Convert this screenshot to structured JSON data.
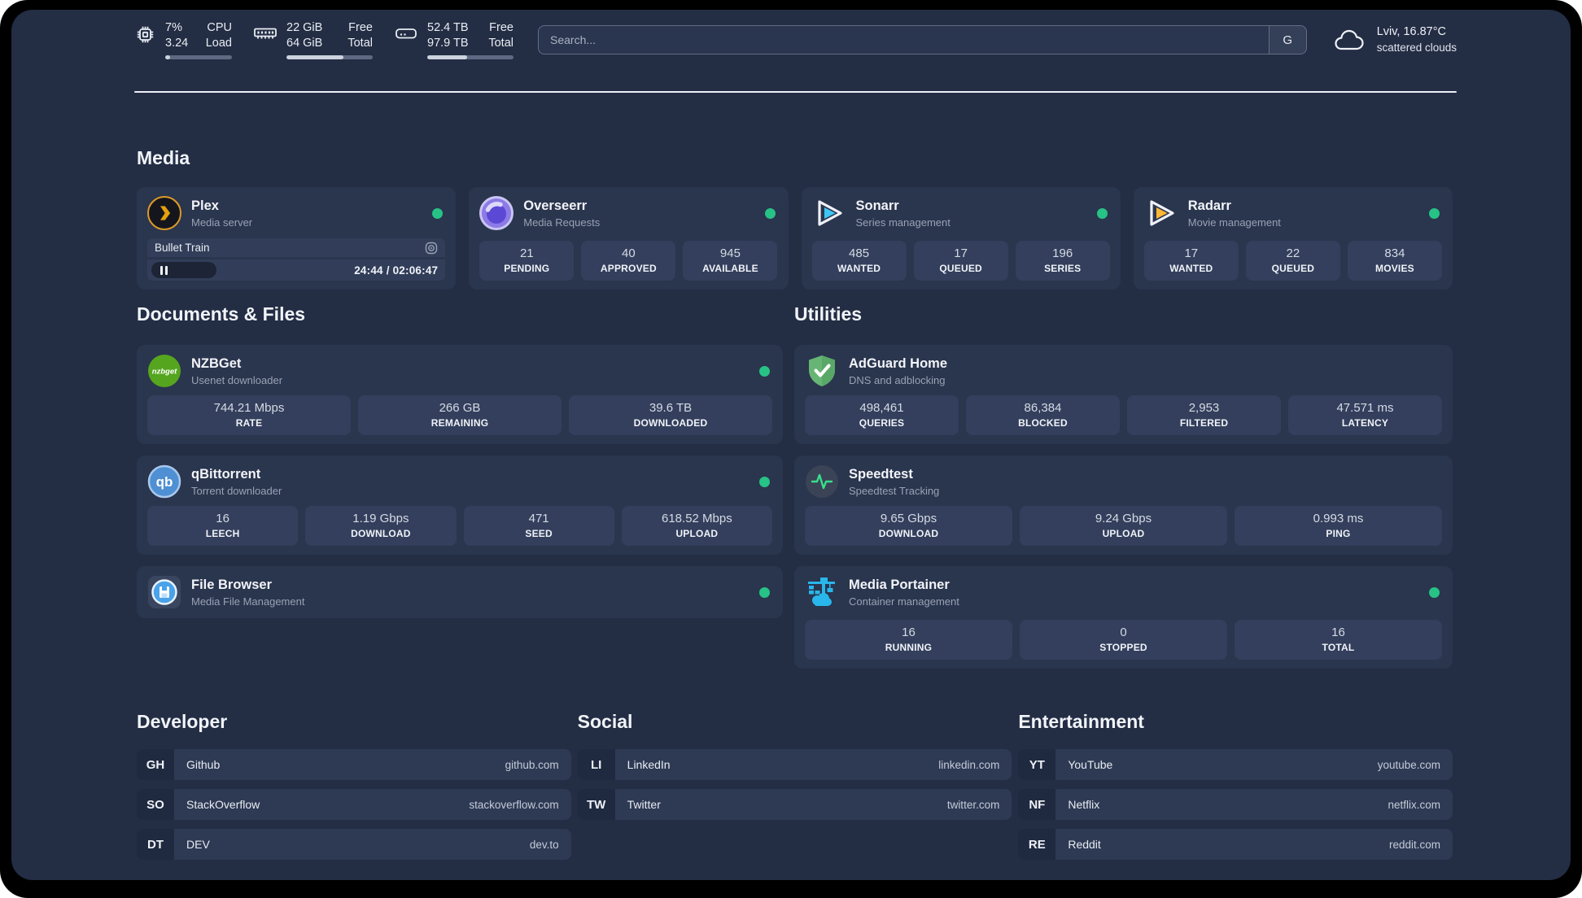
{
  "topbar": {
    "metrics": [
      {
        "name": "cpu",
        "line1_value": "7%",
        "line1_label": "CPU",
        "line2_value": "3.24",
        "line2_label": "Load",
        "progress_percent": 7
      },
      {
        "name": "memory",
        "line1_value": "22 GiB",
        "line1_label": "Free",
        "line2_value": "64 GiB",
        "line2_label": "Total",
        "progress_percent": 66
      },
      {
        "name": "storage",
        "line1_value": "52.4 TB",
        "line1_label": "Free",
        "line2_value": "97.9 TB",
        "line2_label": "Total",
        "progress_percent": 46
      }
    ],
    "search": {
      "placeholder": "Search...",
      "button_label": "G"
    },
    "weather": {
      "location": "Lviv, 16.87°C",
      "condition": "scattered clouds"
    }
  },
  "sections": {
    "media": {
      "title": "Media",
      "plex": {
        "name": "Plex",
        "subtitle": "Media server",
        "now_playing": {
          "title": "Bullet Train",
          "time_display": "24:44 / 02:06:47"
        }
      },
      "overseerr": {
        "name": "Overseerr",
        "subtitle": "Media Requests",
        "stats": [
          {
            "value": "21",
            "label": "PENDING"
          },
          {
            "value": "40",
            "label": "APPROVED"
          },
          {
            "value": "945",
            "label": "AVAILABLE"
          }
        ]
      },
      "sonarr": {
        "name": "Sonarr",
        "subtitle": "Series management",
        "stats": [
          {
            "value": "485",
            "label": "WANTED"
          },
          {
            "value": "17",
            "label": "QUEUED"
          },
          {
            "value": "196",
            "label": "SERIES"
          }
        ]
      },
      "radarr": {
        "name": "Radarr",
        "subtitle": "Movie management",
        "stats": [
          {
            "value": "17",
            "label": "WANTED"
          },
          {
            "value": "22",
            "label": "QUEUED"
          },
          {
            "value": "834",
            "label": "MOVIES"
          }
        ]
      }
    },
    "documents": {
      "title": "Documents & Files",
      "nzbget": {
        "name": "NZBGet",
        "subtitle": "Usenet downloader",
        "stats": [
          {
            "value": "744.21 Mbps",
            "label": "RATE"
          },
          {
            "value": "266 GB",
            "label": "REMAINING"
          },
          {
            "value": "39.6 TB",
            "label": "DOWNLOADED"
          }
        ]
      },
      "qbittorrent": {
        "name": "qBittorrent",
        "subtitle": "Torrent downloader",
        "stats": [
          {
            "value": "16",
            "label": "LEECH"
          },
          {
            "value": "1.19 Gbps",
            "label": "DOWNLOAD"
          },
          {
            "value": "471",
            "label": "SEED"
          },
          {
            "value": "618.52 Mbps",
            "label": "UPLOAD"
          }
        ]
      },
      "filebrowser": {
        "name": "File Browser",
        "subtitle": "Media File Management"
      }
    },
    "utilities": {
      "title": "Utilities",
      "adguard": {
        "name": "AdGuard Home",
        "subtitle": "DNS and adblocking",
        "stats": [
          {
            "value": "498,461",
            "label": "QUERIES"
          },
          {
            "value": "86,384",
            "label": "BLOCKED"
          },
          {
            "value": "2,953",
            "label": "FILTERED"
          },
          {
            "value": "47.571 ms",
            "label": "LATENCY"
          }
        ]
      },
      "speedtest": {
        "name": "Speedtest",
        "subtitle": "Speedtest Tracking",
        "stats": [
          {
            "value": "9.65 Gbps",
            "label": "DOWNLOAD"
          },
          {
            "value": "9.24 Gbps",
            "label": "UPLOAD"
          },
          {
            "value": "0.993 ms",
            "label": "PING"
          }
        ]
      },
      "portainer": {
        "name": "Media Portainer",
        "subtitle": "Container management",
        "stats": [
          {
            "value": "16",
            "label": "RUNNING"
          },
          {
            "value": "0",
            "label": "STOPPED"
          },
          {
            "value": "16",
            "label": "TOTAL"
          }
        ]
      }
    },
    "developer": {
      "title": "Developer",
      "links": [
        {
          "abbr": "GH",
          "name": "Github",
          "url": "github.com"
        },
        {
          "abbr": "SO",
          "name": "StackOverflow",
          "url": "stackoverflow.com"
        },
        {
          "abbr": "DT",
          "name": "DEV",
          "url": "dev.to"
        }
      ]
    },
    "social": {
      "title": "Social",
      "links": [
        {
          "abbr": "LI",
          "name": "LinkedIn",
          "url": "linkedin.com"
        },
        {
          "abbr": "TW",
          "name": "Twitter",
          "url": "twitter.com"
        }
      ]
    },
    "entertainment": {
      "title": "Entertainment",
      "links": [
        {
          "abbr": "YT",
          "name": "YouTube",
          "url": "youtube.com"
        },
        {
          "abbr": "NF",
          "name": "Netflix",
          "url": "netflix.com"
        },
        {
          "abbr": "RE",
          "name": "Reddit",
          "url": "reddit.com"
        }
      ]
    }
  },
  "colors": {
    "page_background": "#232d44",
    "card_background": "#2a354e",
    "stat_background": "#333f5c",
    "status_online": "#27c285",
    "plex_accent": "#e5a00d",
    "sonarr_accent": "#3ec6f4",
    "radarr_accent": "#ffb733",
    "portainer_accent": "#29b6ea"
  }
}
